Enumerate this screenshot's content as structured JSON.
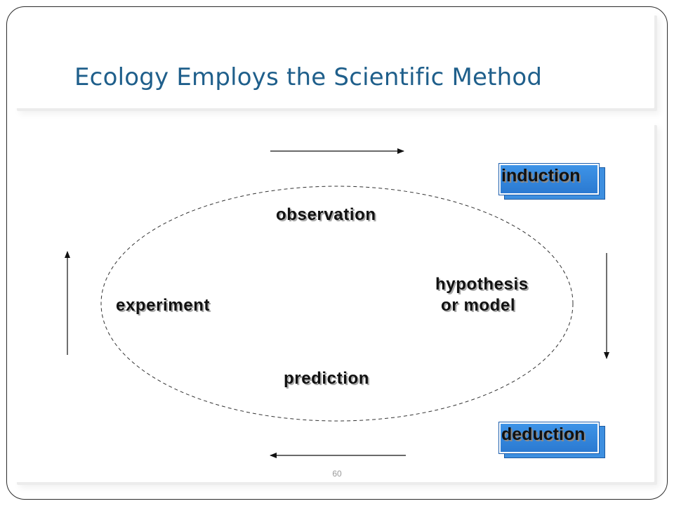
{
  "slide": {
    "title": "Ecology Employs the Scientific Method",
    "page_number": "60"
  },
  "diagram": {
    "cycle_nodes": {
      "observation": "observation",
      "hypothesis_line1": "hypothesis",
      "hypothesis_line2": "or model",
      "prediction": "prediction",
      "experiment": "experiment"
    },
    "tags": {
      "induction": "induction",
      "deduction": "deduction"
    },
    "arrow_directions": [
      "right",
      "down",
      "left",
      "up"
    ]
  },
  "colors": {
    "title": "#1f5f8b",
    "tag_fill": "#2a78d0",
    "text": "#111111",
    "ellipse_stroke": "#333333"
  }
}
